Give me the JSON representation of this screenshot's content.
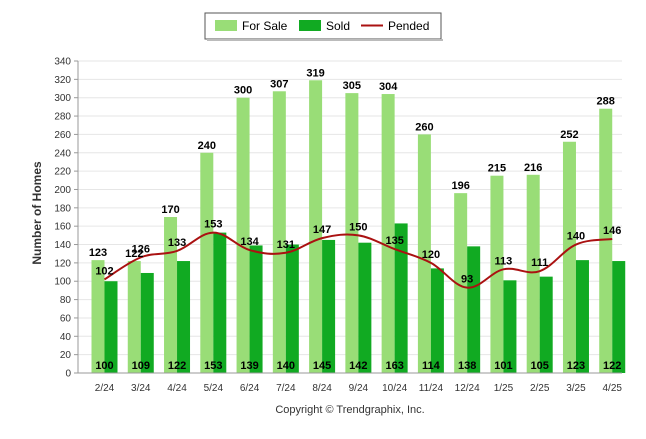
{
  "chart_data": {
    "type": "bar",
    "ylabel": "Number of Homes",
    "xlabel": "",
    "ylim": [
      0,
      340
    ],
    "yticks": [
      0,
      20,
      40,
      60,
      80,
      100,
      120,
      140,
      160,
      180,
      200,
      220,
      240,
      260,
      280,
      300,
      320,
      340
    ],
    "grid": true,
    "legend_position": "top-center",
    "categories": [
      "2/24",
      "3/24",
      "4/24",
      "5/24",
      "6/24",
      "7/24",
      "8/24",
      "9/24",
      "10/24",
      "11/24",
      "12/24",
      "1/25",
      "2/25",
      "3/25",
      "4/25"
    ],
    "series": [
      {
        "name": "For Sale",
        "kind": "bar",
        "color": "#99dd77",
        "values": [
          123,
          122,
          170,
          240,
          300,
          307,
          319,
          305,
          304,
          260,
          196,
          215,
          216,
          252,
          288
        ]
      },
      {
        "name": "Sold",
        "kind": "bar",
        "color": "#11aa22",
        "values": [
          100,
          109,
          122,
          153,
          139,
          140,
          145,
          142,
          163,
          114,
          138,
          101,
          105,
          123,
          122
        ]
      },
      {
        "name": "Pended",
        "kind": "line",
        "color": "#aa1111",
        "values": [
          102,
          126,
          133,
          153,
          134,
          131,
          147,
          150,
          135,
          120,
          93,
          113,
          111,
          140,
          146
        ]
      }
    ]
  },
  "legend": {
    "items": [
      {
        "label": "For Sale",
        "color": "#99dd77"
      },
      {
        "label": "Sold",
        "color": "#11aa22"
      },
      {
        "label": "Pended",
        "color": "#aa1111"
      }
    ]
  },
  "footer": {
    "copyright": "Copyright © Trendgraphix, Inc."
  }
}
